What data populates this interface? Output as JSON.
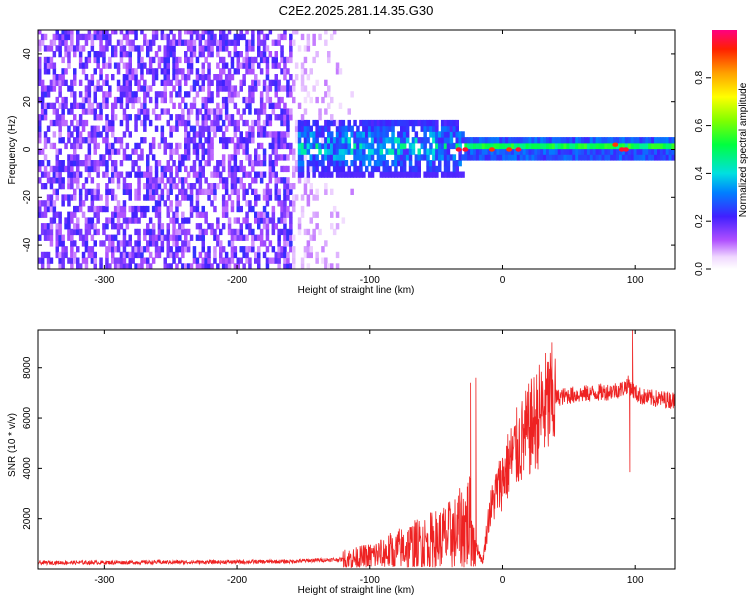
{
  "chart_data": [
    {
      "type": "heatmap",
      "title": "C2E2.2025.281.14.35.G30",
      "xlabel": "Height of straight line (km)",
      "ylabel": "Frequency (Hz)",
      "xlim": [
        -350,
        130
      ],
      "ylim": [
        -50,
        50
      ],
      "xticks": [
        -300,
        -200,
        -100,
        0,
        100
      ],
      "yticks": [
        -40,
        -20,
        0,
        20,
        40
      ],
      "colorbar": {
        "label": "Normalized spectral amplitude",
        "range": [
          0,
          1
        ],
        "ticks": [
          0.0,
          0.2,
          0.4,
          0.6,
          0.8
        ],
        "tick_labels": [
          "0.0",
          "0.2",
          "0.4",
          "0.6",
          "0.8"
        ]
      },
      "regions": [
        {
          "x_range": [
            -350,
            -160
          ],
          "freq_range": [
            -50,
            50
          ],
          "amplitude": 0.15,
          "pattern": "broadband noise"
        },
        {
          "x_range": [
            -160,
            -110
          ],
          "freq_range": [
            -50,
            50
          ],
          "amplitude": 0.05,
          "pattern": "sparse noise"
        },
        {
          "x_range": [
            -155,
            -30
          ],
          "freq_range": [
            -12,
            12
          ],
          "amplitude": 0.35,
          "pattern": "signal onset"
        },
        {
          "x_range": [
            -30,
            130
          ],
          "freq_range": [
            -5,
            5
          ],
          "amplitude": 0.45,
          "pattern": "narrow carrier"
        }
      ],
      "peak_points": [
        {
          "x": -33,
          "freq": 0,
          "amplitude": 0.95
        },
        {
          "x": -28,
          "freq": 0,
          "amplitude": 0.95
        },
        {
          "x": -8,
          "freq": 0,
          "amplitude": 0.9
        },
        {
          "x": 5,
          "freq": 0,
          "amplitude": 0.9
        },
        {
          "x": 12,
          "freq": 0,
          "amplitude": 0.95
        },
        {
          "x": 85,
          "freq": 2,
          "amplitude": 0.9
        },
        {
          "x": 90,
          "freq": 0,
          "amplitude": 0.95
        },
        {
          "x": 93,
          "freq": 0,
          "amplitude": 0.95
        }
      ]
    },
    {
      "type": "line",
      "xlabel": "Height of straight line (km)",
      "ylabel": "SNR (10 * v/v)",
      "xlim": [
        -350,
        130
      ],
      "ylim": [
        0,
        9500
      ],
      "xticks": [
        -300,
        -200,
        -100,
        0,
        100
      ],
      "yticks": [
        2000,
        4000,
        6000,
        8000
      ],
      "series": [
        {
          "name": "SNR",
          "color": "#ee2222",
          "x": [
            -350,
            -300,
            -250,
            -200,
            -160,
            -140,
            -120,
            -110,
            -100,
            -90,
            -80,
            -70,
            -60,
            -50,
            -40,
            -30,
            -25,
            -20,
            -15,
            -10,
            -5,
            0,
            5,
            10,
            15,
            20,
            25,
            30,
            35,
            40,
            50,
            60,
            70,
            80,
            90,
            95,
            100,
            105,
            110,
            120,
            130
          ],
          "y": [
            250,
            260,
            270,
            280,
            300,
            350,
            380,
            420,
            500,
            620,
            760,
            900,
            1000,
            1150,
            1300,
            1600,
            1900,
            1000,
            250,
            2200,
            3000,
            3600,
            4200,
            4700,
            5100,
            5500,
            5900,
            6300,
            6600,
            6800,
            6900,
            6950,
            7000,
            7050,
            7150,
            7350,
            7000,
            6850,
            6800,
            6750,
            6700
          ]
        }
      ],
      "spikes": [
        {
          "x": -24,
          "y": 7400
        },
        {
          "x": -20,
          "y": 7600
        },
        {
          "x": 98,
          "y": 9500
        },
        {
          "x": 96,
          "y": 3850
        }
      ]
    }
  ]
}
